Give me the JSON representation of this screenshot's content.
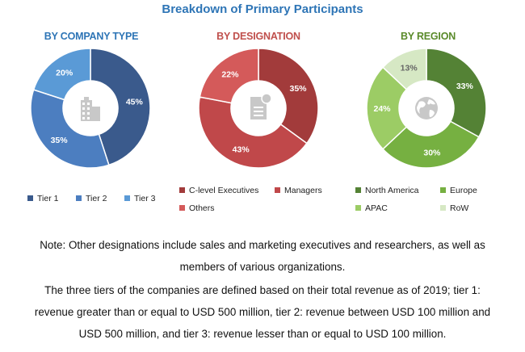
{
  "title": "Breakdown of Primary Participants",
  "chart_data": [
    {
      "type": "pie",
      "title": "BY COMPANY TYPE",
      "title_color": "#2e75b6",
      "categories": [
        "Tier 1",
        "Tier 2",
        "Tier 3"
      ],
      "values": [
        45,
        35,
        20
      ],
      "labels": [
        "45%",
        "35%",
        "20%"
      ],
      "colors": [
        "#3a5a8c",
        "#4c7ec0",
        "#5a9ad6"
      ],
      "icon": "building-icon",
      "legend_position": "bottom"
    },
    {
      "type": "pie",
      "title": "BY DESIGNATION",
      "title_color": "#c0504d",
      "categories": [
        "C-level Executives",
        "Managers",
        "Others"
      ],
      "values": [
        35,
        43,
        22
      ],
      "labels": [
        "35%",
        "43%",
        "22%"
      ],
      "colors": [
        "#a23b3b",
        "#c0484a",
        "#d45a5a"
      ],
      "icon": "document-icon",
      "legend_position": "bottom"
    },
    {
      "type": "pie",
      "title": "BY REGION",
      "title_color": "#5a8a2a",
      "categories": [
        "North America",
        "Europe",
        "APAC",
        "RoW"
      ],
      "values": [
        33,
        30,
        24,
        13
      ],
      "labels": [
        "33%",
        "30%",
        "24%",
        "13%"
      ],
      "colors": [
        "#548235",
        "#76b041",
        "#9ccc65",
        "#d6e8c4"
      ],
      "icon": "globe-icon",
      "legend_position": "bottom"
    }
  ],
  "notes": {
    "line1": "Note: Other designations include sales and marketing executives and researchers, as well as",
    "line2": "members of various organizations.",
    "line3": "The three tiers of the companies are defined based on their total revenue as of 2019; tier 1:",
    "line4": "revenue greater than or equal to USD 500 million, tier 2: revenue between USD 100 million and",
    "line5": "USD 500 million, and tier 3: revenue lesser than or equal to USD 100 million."
  }
}
